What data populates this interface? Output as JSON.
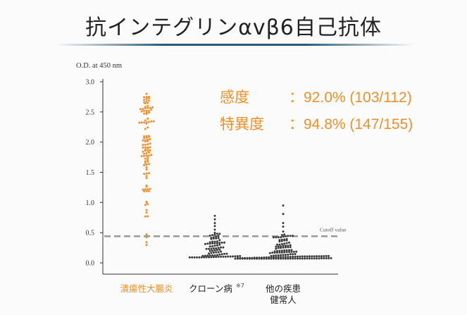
{
  "title": "抗インテグリンαvβ6自己抗体",
  "stats": [
    {
      "label": "感度",
      "value": "：92.0% (103/112)"
    },
    {
      "label": "特異度",
      "value": "：94.8% (147/155)"
    }
  ],
  "colors": {
    "accent": "#f0902a",
    "control": "#3a3a3a",
    "cutoff": "#999999",
    "axis": "#333333"
  },
  "chart_data": {
    "type": "scatter",
    "ylabel": "O.D. at 450 nm",
    "ylim": [
      0,
      3.0
    ],
    "yticks": [
      "0.0",
      "0.5",
      "1.0",
      "1.5",
      "2.0",
      "2.5",
      "3.0"
    ],
    "cutoff": {
      "value": 0.44,
      "label": "Cutoff value"
    },
    "groups": [
      {
        "label": "潰瘍性大腸炎",
        "label2": "",
        "color": "#f0902a",
        "count": 112,
        "range": [
          0.12,
          2.85
        ],
        "dist": "ulcerative",
        "extras": [
          2.8,
          2.75,
          2.7,
          2.65,
          2.6
        ]
      },
      {
        "label": "クローン病",
        "sup": "※7",
        "label2": "",
        "color": "#3a3a3a",
        "count": 90,
        "range": [
          0.05,
          0.78
        ],
        "dist": "low",
        "extras": [
          0.78,
          0.72,
          0.66,
          0.61,
          0.55,
          0.5,
          0.46
        ]
      },
      {
        "label": "他の疾患",
        "label2": "健常人",
        "color": "#3a3a3a",
        "count": 155,
        "range": [
          0.05,
          0.95
        ],
        "dist": "verylow",
        "extras": [
          0.95,
          0.81,
          0.66,
          0.6,
          0.52,
          0.47
        ]
      }
    ]
  }
}
